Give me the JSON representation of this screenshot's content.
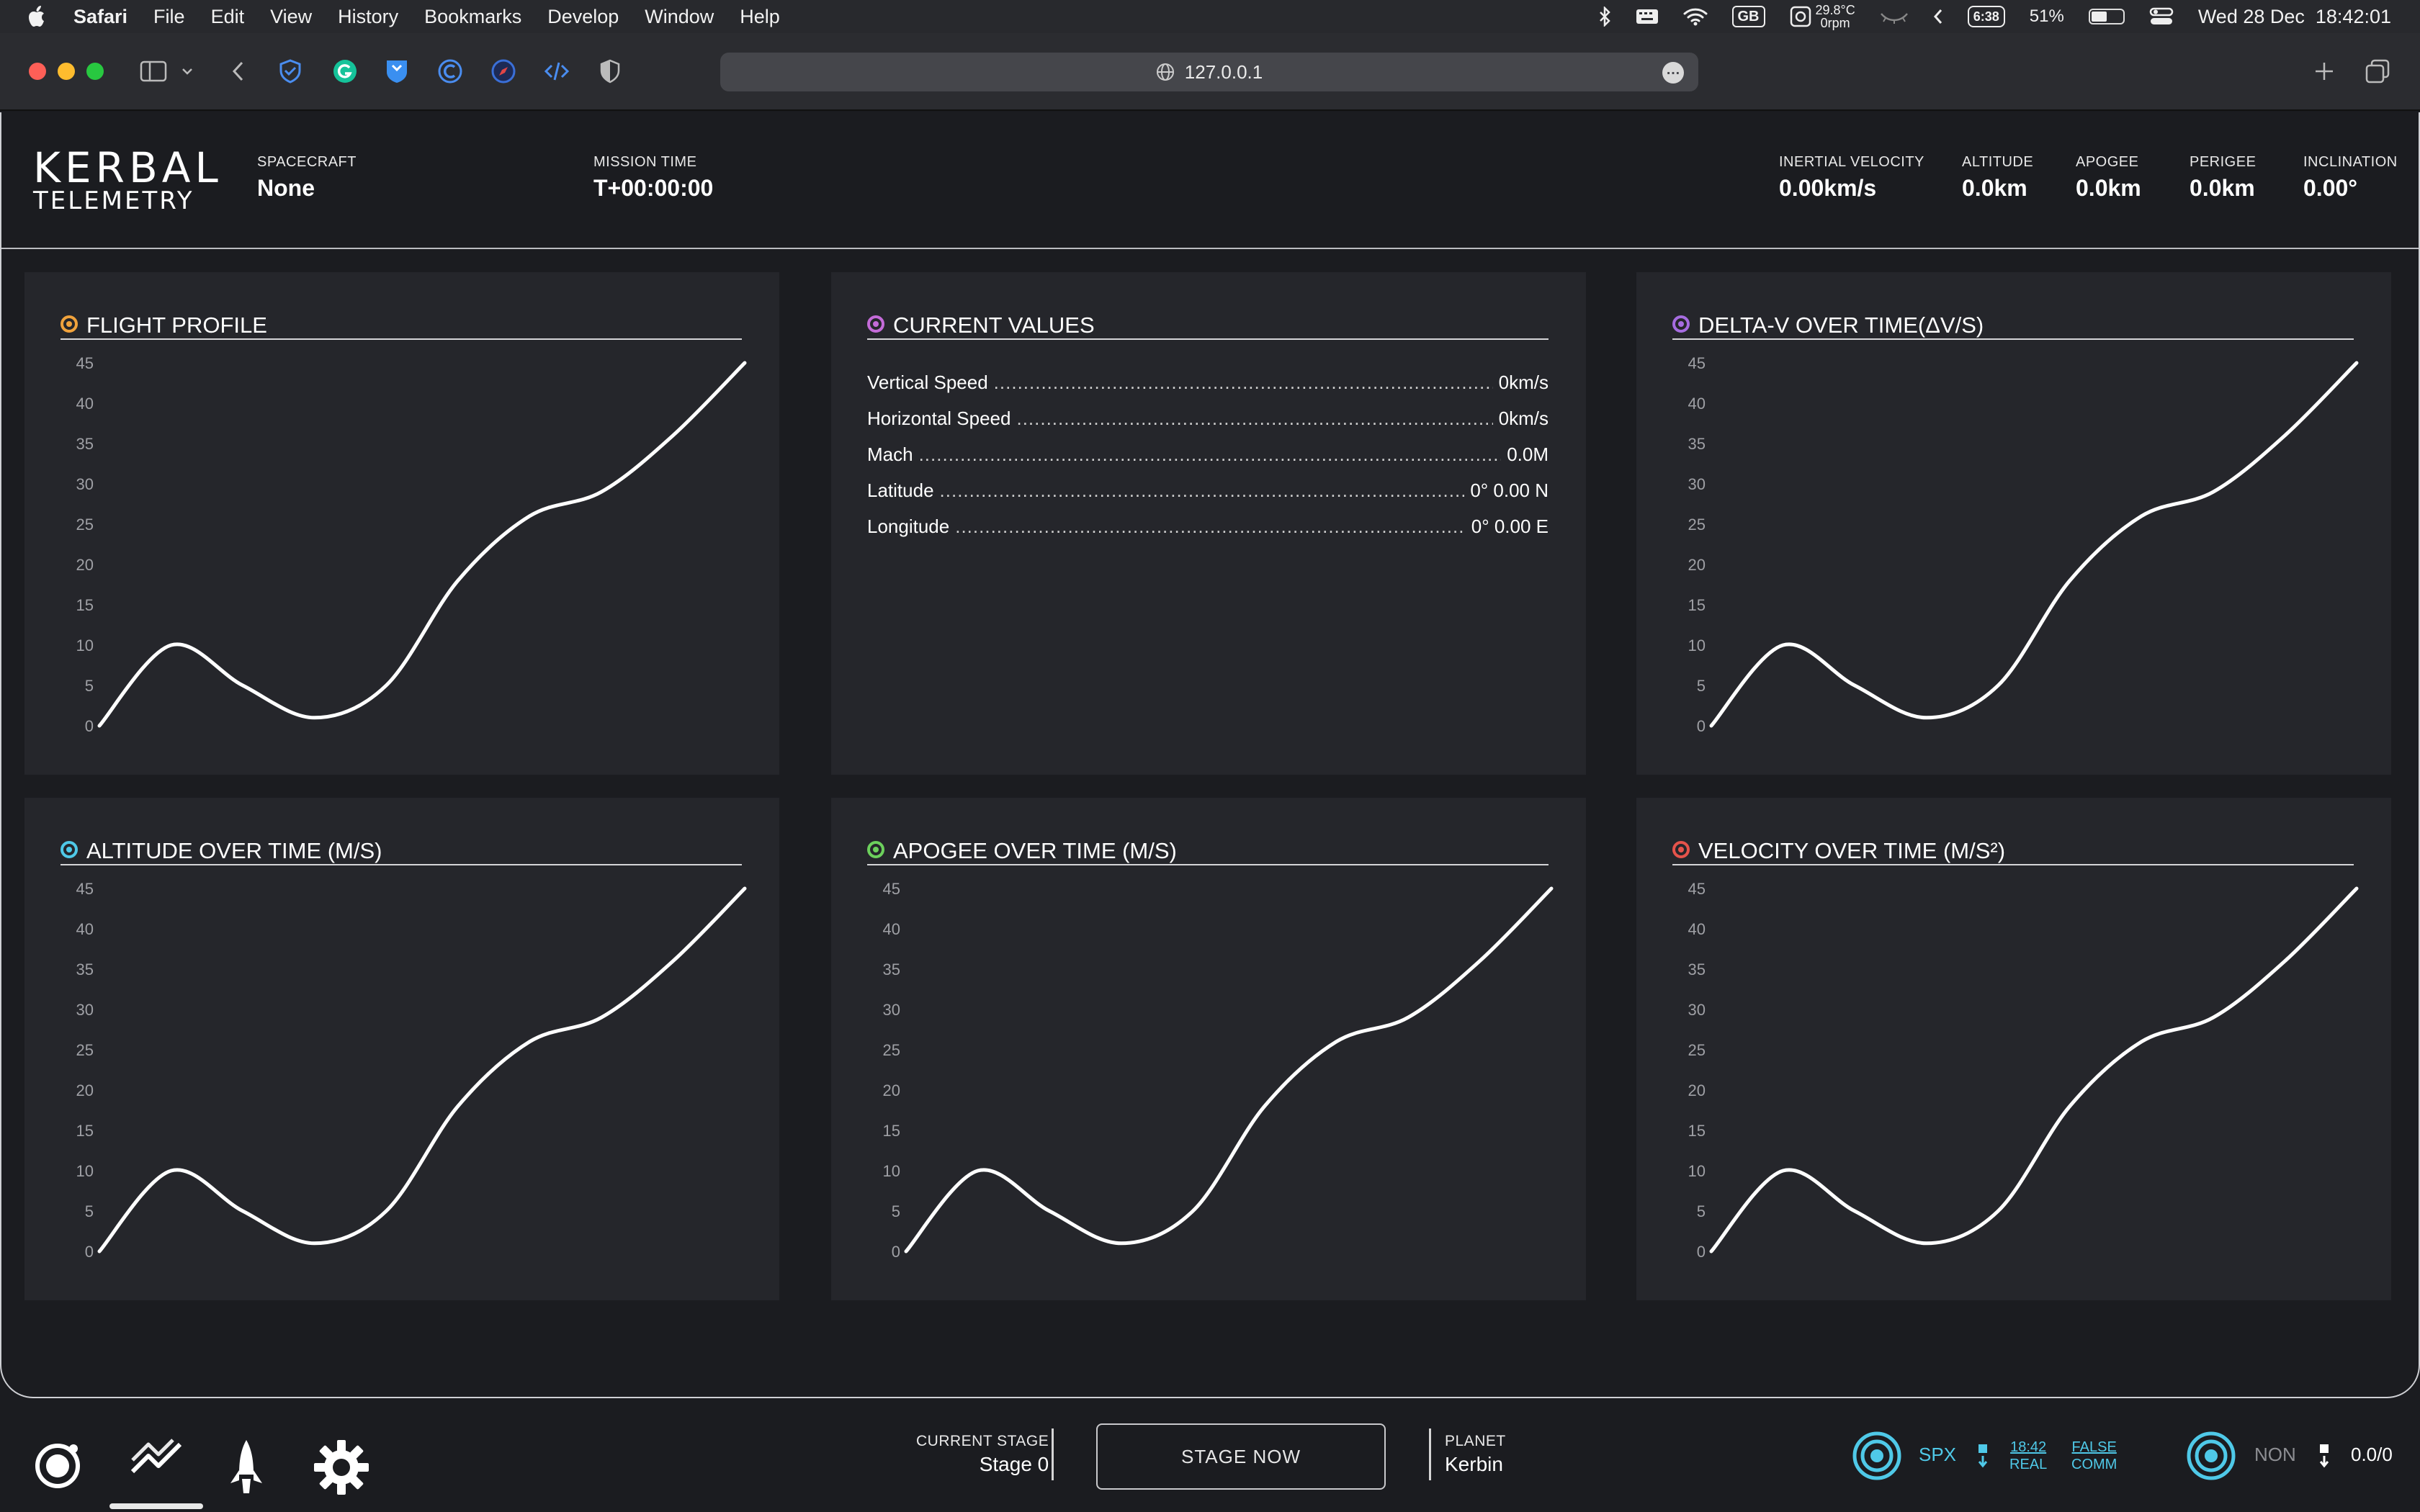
{
  "menubar": {
    "app_name": "Safari",
    "items": [
      "File",
      "Edit",
      "View",
      "History",
      "Bookmarks",
      "Develop",
      "Window",
      "Help"
    ],
    "lang_badge": "GB",
    "temperature": "29.8°C",
    "fan": "0rpm",
    "battery_time": "6:38",
    "battery_percent": "51%",
    "battery_level": 0.51,
    "datetime": "Wed 28 Dec  18:42:01"
  },
  "browser": {
    "url": "127.0.0.1",
    "more_icon": "ellipsis-icon"
  },
  "header": {
    "logo_line1": "KERBAL",
    "logo_line2": "TELEMETRY",
    "spacecraft_label": "SPACECRAFT",
    "spacecraft_value": "None",
    "mission_time_label": "MISSION TIME",
    "mission_time_value": "T+00:00:00",
    "stats": [
      {
        "label": "INERTIAL VELOCITY",
        "value": "0.00km/s"
      },
      {
        "label": "ALTITUDE",
        "value": "0.0km"
      },
      {
        "label": "APOGEE",
        "value": "0.0km"
      },
      {
        "label": "PERIGEE",
        "value": "0.0km"
      },
      {
        "label": "INCLINATION",
        "value": "0.00°"
      }
    ]
  },
  "panels": {
    "flight_profile": {
      "title": "FLIGHT PROFILE",
      "color": "#f0a23c"
    },
    "current_values": {
      "title": "CURRENT VALUES",
      "color": "#c46bd8",
      "rows": [
        {
          "label": "Vertical Speed",
          "value": "0km/s"
        },
        {
          "label": "Horizontal Speed",
          "value": "0km/s"
        },
        {
          "label": "Mach",
          "value": "0.0M"
        },
        {
          "label": "Latitude",
          "value": "0° 0.00 N"
        },
        {
          "label": "Longitude",
          "value": "0° 0.00 E"
        }
      ]
    },
    "delta_v": {
      "title": "DELTA-V OVER TIME(ΔV/S)",
      "color": "#a66ce0"
    },
    "altitude": {
      "title": "ALTITUDE OVER TIME (M/S)",
      "color": "#4fc9e8"
    },
    "apogee": {
      "title": "APOGEE OVER TIME (M/S)",
      "color": "#6cd05c"
    },
    "velocity": {
      "title": "VELOCITY OVER TIME (M/S²)",
      "color": "#e5534b"
    }
  },
  "chart_data": [
    {
      "id": "flight_profile",
      "type": "line",
      "ylim": [
        0,
        45
      ],
      "yticks": [
        "0",
        "5",
        "10",
        "15",
        "20",
        "25",
        "30",
        "35",
        "40",
        "45"
      ],
      "series": [
        {
          "x": [
            0,
            1,
            2,
            3,
            4,
            5,
            6,
            7,
            8,
            9
          ],
          "values": [
            0,
            10,
            5,
            1,
            5,
            18,
            26,
            29,
            36,
            45
          ]
        }
      ]
    },
    {
      "id": "delta_v",
      "type": "line",
      "ylim": [
        0,
        45
      ],
      "yticks": [
        "0",
        "5",
        "10",
        "15",
        "20",
        "25",
        "30",
        "35",
        "40",
        "45"
      ],
      "series": [
        {
          "x": [
            0,
            1,
            2,
            3,
            4,
            5,
            6,
            7,
            8,
            9
          ],
          "values": [
            0,
            10,
            5,
            1,
            5,
            18,
            26,
            29,
            36,
            45
          ]
        }
      ]
    },
    {
      "id": "altitude",
      "type": "line",
      "ylim": [
        0,
        45
      ],
      "yticks": [
        "0",
        "5",
        "10",
        "15",
        "20",
        "25",
        "30",
        "35",
        "40",
        "45"
      ],
      "series": [
        {
          "x": [
            0,
            1,
            2,
            3,
            4,
            5,
            6,
            7,
            8,
            9
          ],
          "values": [
            0,
            10,
            5,
            1,
            5,
            18,
            26,
            29,
            36,
            45
          ]
        }
      ]
    },
    {
      "id": "apogee",
      "type": "line",
      "ylim": [
        0,
        45
      ],
      "yticks": [
        "0",
        "5",
        "10",
        "15",
        "20",
        "25",
        "30",
        "35",
        "40",
        "45"
      ],
      "series": [
        {
          "x": [
            0,
            1,
            2,
            3,
            4,
            5,
            6,
            7,
            8,
            9
          ],
          "values": [
            0,
            10,
            5,
            1,
            5,
            18,
            26,
            29,
            36,
            45
          ]
        }
      ]
    },
    {
      "id": "velocity",
      "type": "line",
      "ylim": [
        0,
        45
      ],
      "yticks": [
        "0",
        "5",
        "10",
        "15",
        "20",
        "25",
        "30",
        "35",
        "40",
        "45"
      ],
      "series": [
        {
          "x": [
            0,
            1,
            2,
            3,
            4,
            5,
            6,
            7,
            8,
            9
          ],
          "values": [
            0,
            10,
            5,
            1,
            5,
            18,
            26,
            29,
            36,
            45
          ]
        }
      ]
    }
  ],
  "footer": {
    "nav": [
      "orbit-icon",
      "trend-chart-icon",
      "rocket-icon",
      "gear-icon"
    ],
    "current_stage_label": "CURRENT STAGE",
    "current_stage_value": "Stage 0",
    "stage_button": "STAGE NOW",
    "planet_label": "PLANET",
    "planet_value": "Kerbin",
    "conn1": {
      "label": "SPX",
      "time": "18:42",
      "mode": "REAL",
      "flag1": "FALSE",
      "flag2": "COMM",
      "color": "#4fc9e8"
    },
    "conn2": {
      "label": "NON",
      "value": "0.0/0",
      "color": "#4fc9e8"
    }
  }
}
